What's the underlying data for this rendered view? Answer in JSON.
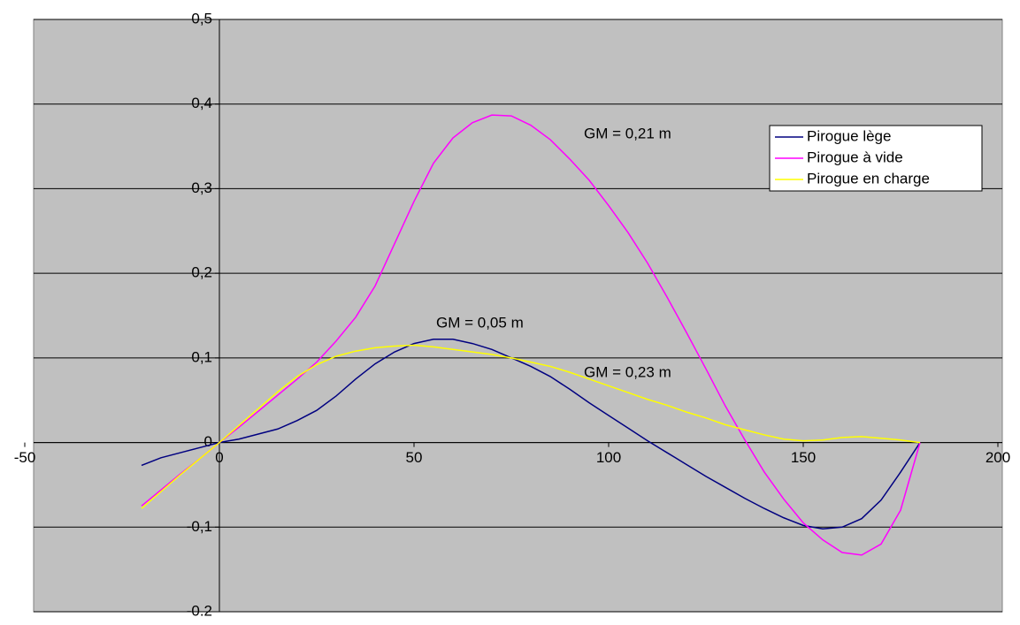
{
  "chart_data": {
    "type": "line",
    "x": [
      -20,
      -15,
      -10,
      -5,
      0,
      5,
      10,
      15,
      20,
      25,
      30,
      35,
      40,
      45,
      50,
      55,
      60,
      65,
      70,
      75,
      80,
      85,
      90,
      95,
      100,
      105,
      110,
      115,
      120,
      125,
      130,
      135,
      140,
      145,
      150,
      155,
      160,
      165,
      170,
      175,
      180
    ],
    "series": [
      {
        "name": "Pirogue lège",
        "color": "#000080",
        "values": [
          -0.027,
          -0.018,
          -0.012,
          -0.006,
          0,
          0.004,
          0.01,
          0.016,
          0.026,
          0.038,
          0.055,
          0.075,
          0.093,
          0.107,
          0.117,
          0.122,
          0.122,
          0.117,
          0.11,
          0.1,
          0.09,
          0.078,
          0.063,
          0.047,
          0.032,
          0.017,
          0.002,
          -0.012,
          -0.026,
          -0.04,
          -0.053,
          -0.066,
          -0.078,
          -0.089,
          -0.098,
          -0.102,
          -0.1,
          -0.09,
          -0.068,
          -0.035,
          0
        ]
      },
      {
        "name": "Pirogue à vide",
        "color": "#ff00ff",
        "values": [
          -0.075,
          -0.056,
          -0.037,
          -0.019,
          0,
          0.018,
          0.037,
          0.056,
          0.075,
          0.095,
          0.12,
          0.148,
          0.185,
          0.235,
          0.285,
          0.33,
          0.36,
          0.378,
          0.387,
          0.386,
          0.375,
          0.358,
          0.335,
          0.31,
          0.28,
          0.248,
          0.212,
          0.172,
          0.13,
          0.087,
          0.043,
          0.003,
          -0.035,
          -0.067,
          -0.095,
          -0.115,
          -0.13,
          -0.133,
          -0.12,
          -0.08,
          0
        ]
      },
      {
        "name": "Pirogue en charge",
        "color": "#ffff00",
        "values": [
          -0.078,
          -0.058,
          -0.038,
          -0.019,
          0,
          0.02,
          0.04,
          0.06,
          0.078,
          0.092,
          0.102,
          0.108,
          0.112,
          0.114,
          0.115,
          0.113,
          0.11,
          0.107,
          0.104,
          0.1,
          0.095,
          0.09,
          0.083,
          0.075,
          0.067,
          0.059,
          0.051,
          0.044,
          0.036,
          0.029,
          0.021,
          0.015,
          0.009,
          0.004,
          0.002,
          0.003,
          0.006,
          0.007,
          0.005,
          0.003,
          0
        ]
      }
    ],
    "annotations": [
      "GM = 0,21 m",
      "GM = 0,05 m",
      "GM = 0,23 m"
    ],
    "xlim": [
      -50,
      200
    ],
    "xticks": [
      -50,
      0,
      50,
      100,
      150,
      200
    ],
    "ylim": [
      -0.2,
      0.5
    ],
    "yticks": [
      {
        "value": -0.2,
        "label": "-0.2"
      },
      {
        "value": -0.1,
        "label": "-0,1"
      },
      0,
      {
        "value": 0.1,
        "label": "0,1"
      },
      {
        "value": 0.2,
        "label": "0,2"
      },
      {
        "value": 0.3,
        "label": "0,3"
      },
      {
        "value": 0.4,
        "label": "0,4"
      },
      {
        "value": 0.5,
        "label": "0,5"
      }
    ],
    "grid": true,
    "legend": "right"
  }
}
